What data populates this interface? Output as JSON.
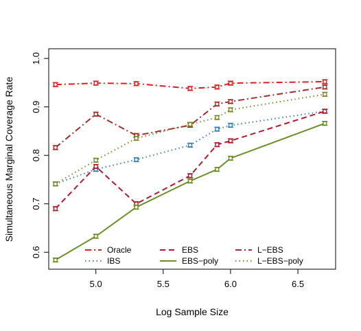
{
  "chart_data": {
    "type": "line",
    "title": "",
    "xlabel": "Log Sample Size",
    "ylabel": "Simultaneous Marginal Coverage Rate",
    "xlim": [
      4.65,
      6.78
    ],
    "ylim": [
      0.565,
      1.02
    ],
    "x_ticks": [
      {
        "value": 5.0,
        "label": "5.0"
      },
      {
        "value": 5.5,
        "label": "5.5"
      },
      {
        "value": 6.0,
        "label": "6.0"
      },
      {
        "value": 6.5,
        "label": "6.5"
      }
    ],
    "y_ticks": [
      {
        "value": 0.6,
        "label": "0.6"
      },
      {
        "value": 0.7,
        "label": "0.7"
      },
      {
        "value": 0.8,
        "label": "0.8"
      },
      {
        "value": 0.9,
        "label": "0.9"
      },
      {
        "value": 1.0,
        "label": "1.0"
      }
    ],
    "x": [
      4.7,
      5.0,
      5.3,
      5.7,
      5.9,
      6.0,
      6.7
    ],
    "error_bar_halfwidth": 0.004,
    "grid": false,
    "legend_placement": "bottom",
    "series": [
      {
        "name": "Oracle",
        "color": "#e41a1c",
        "dash": "dashdot",
        "values": [
          0.946,
          0.949,
          0.948,
          0.938,
          0.941,
          0.949,
          0.952
        ]
      },
      {
        "name": "IBS",
        "color": "#377eb8",
        "dash": "dotted",
        "values": [
          0.741,
          0.771,
          0.791,
          0.821,
          0.854,
          0.862,
          0.891
        ]
      },
      {
        "name": "EBS",
        "color": "#b2182b",
        "dash": "dashed",
        "values": [
          0.69,
          0.777,
          0.7,
          0.758,
          0.822,
          0.83,
          0.891
        ]
      },
      {
        "name": "EBS−poly",
        "color": "#6b8e23",
        "dash": "solid",
        "values": [
          0.584,
          0.633,
          0.693,
          0.747,
          0.771,
          0.794,
          0.866
        ]
      },
      {
        "name": "L−EBS",
        "color": "#a52a2a",
        "dash": "dashdot",
        "values": [
          0.816,
          0.885,
          0.841,
          0.862,
          0.906,
          0.911,
          0.941
        ]
      },
      {
        "name": "L−EBS−poly",
        "color": "#7a8a2a",
        "dash": "dotted",
        "values": [
          0.741,
          0.79,
          0.835,
          0.864,
          0.878,
          0.894,
          0.926
        ]
      }
    ]
  }
}
